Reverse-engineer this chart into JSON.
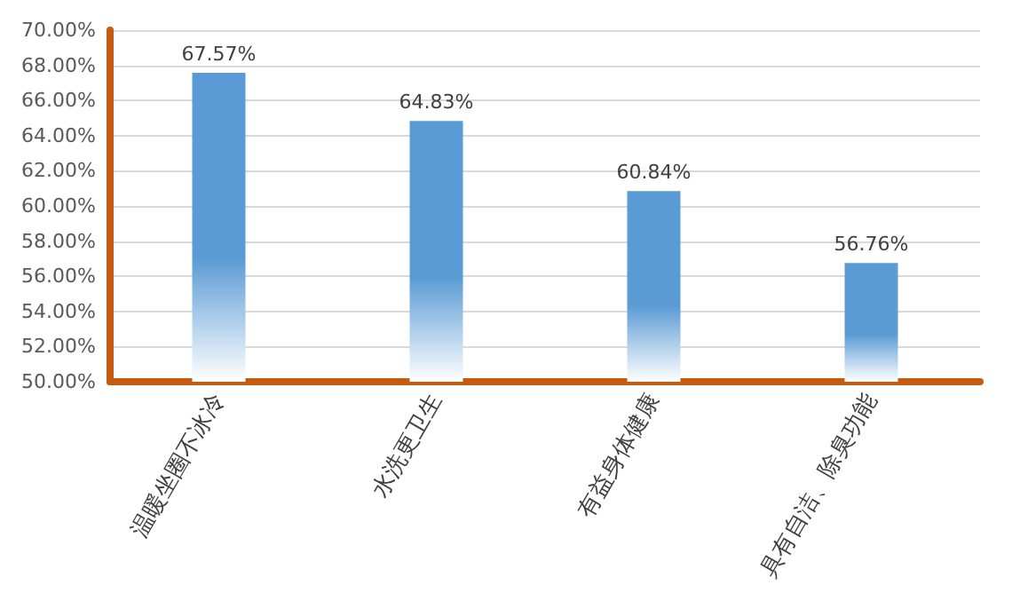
{
  "chart_data": {
    "type": "bar",
    "categories": [
      "温暖坐圈不冰冷",
      "水洗更卫生",
      "有益身体健康",
      "具有自洁、除臭功能"
    ],
    "values": [
      67.57,
      64.83,
      60.84,
      56.76
    ],
    "value_labels": [
      "67.57%",
      "64.83%",
      "60.84%",
      "56.76%"
    ],
    "color": "#5b9bd5",
    "ylim": [
      50,
      70
    ],
    "yticks": [
      {
        "value": 50,
        "label": "50.00%"
      },
      {
        "value": 52,
        "label": "52.00%"
      },
      {
        "value": 54,
        "label": "54.00%"
      },
      {
        "value": 56,
        "label": "56.00%"
      },
      {
        "value": 58,
        "label": "58.00%"
      },
      {
        "value": 60,
        "label": "60.00%"
      },
      {
        "value": 62,
        "label": "62.00%"
      },
      {
        "value": 64,
        "label": "64.00%"
      },
      {
        "value": 66,
        "label": "66.00%"
      },
      {
        "value": 68,
        "label": "68.00%"
      },
      {
        "value": 70,
        "label": "70.00%"
      }
    ],
    "grid": "y"
  }
}
